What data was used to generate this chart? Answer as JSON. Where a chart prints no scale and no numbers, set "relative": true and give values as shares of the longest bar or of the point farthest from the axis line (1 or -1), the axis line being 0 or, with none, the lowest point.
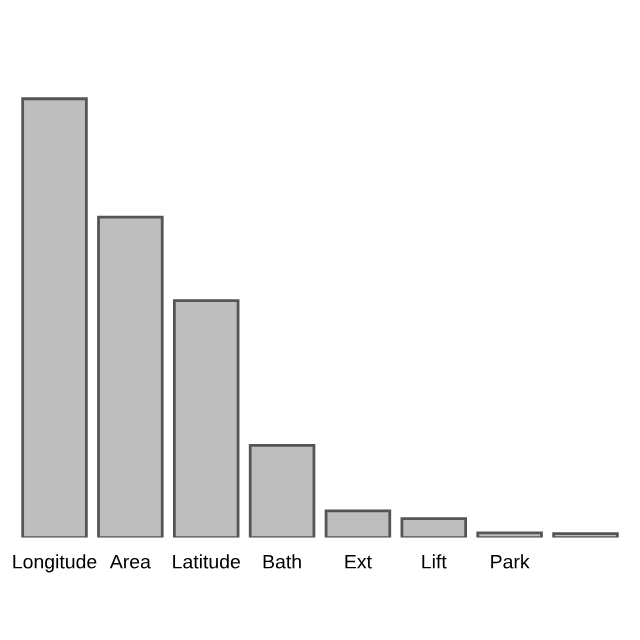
{
  "chart_data": {
    "type": "bar",
    "relative": true,
    "categories": [
      "Longitude",
      "Area",
      "Latitude",
      "Bath",
      "Ext",
      "Lift",
      "Park",
      null
    ],
    "values": [
      1,
      0.73,
      0.54,
      0.21,
      0.061,
      0.043,
      0.011,
      0.009
    ],
    "color": "#bebebe",
    "grid": false
  }
}
